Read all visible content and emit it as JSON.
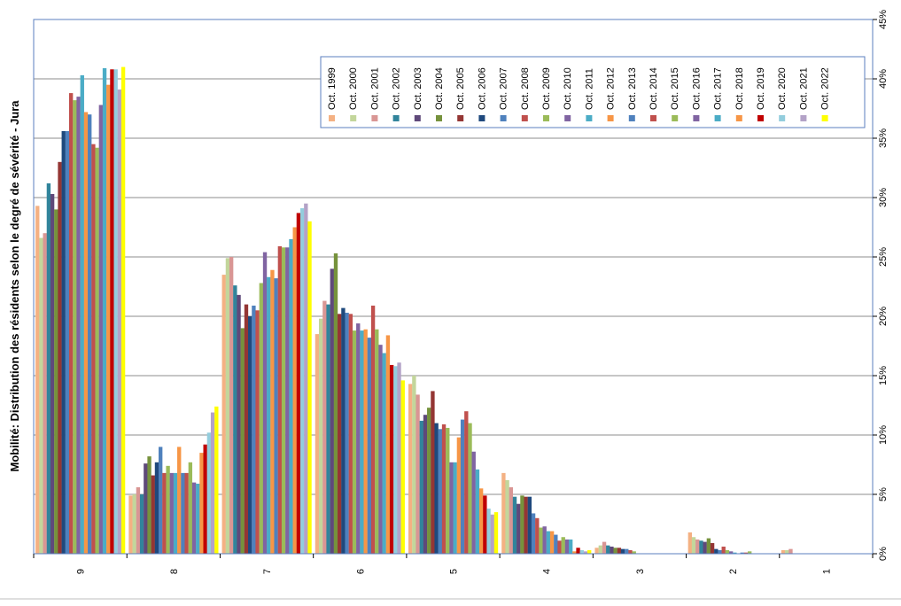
{
  "chart_data": {
    "type": "bar",
    "title": "Mobilité: Distribution des résidents selon le degré de sévérité - Jura",
    "xlabel": "",
    "ylabel": "",
    "ylim": [
      0,
      45
    ],
    "yticks": [
      "0%",
      "5%",
      "10%",
      "15%",
      "20%",
      "25%",
      "30%",
      "35%",
      "40%",
      "45%"
    ],
    "grid": true,
    "legend_position": "top-right",
    "categories": [
      "9",
      "8",
      "7",
      "6",
      "5",
      "4",
      "3",
      "2",
      "1"
    ],
    "series": [
      {
        "name": "Oct. 1999",
        "color": "#f4b183",
        "values": [
          29.3,
          4.9,
          23.5,
          18.5,
          14.3,
          6.8,
          0.5,
          1.8,
          0.3
        ]
      },
      {
        "name": "Oct. 2000",
        "color": "#c3d69b",
        "values": [
          26.6,
          5.0,
          24.9,
          19.8,
          15.0,
          6.2,
          0.7,
          1.4,
          0.3
        ]
      },
      {
        "name": "Oct. 2001",
        "color": "#d99694",
        "values": [
          27.0,
          5.6,
          25.0,
          21.3,
          13.4,
          5.6,
          1.0,
          1.2,
          0.4
        ]
      },
      {
        "name": "Oct. 2002",
        "color": "#31849b",
        "values": [
          31.2,
          5.0,
          22.6,
          21.0,
          11.2,
          4.8,
          0.7,
          1.1,
          0.0
        ]
      },
      {
        "name": "Oct. 2003",
        "color": "#5f497a",
        "values": [
          30.3,
          7.6,
          21.8,
          24.0,
          11.7,
          4.2,
          0.6,
          1.0,
          0.0
        ]
      },
      {
        "name": "Oct. 2004",
        "color": "#76923c",
        "values": [
          29.0,
          8.2,
          19.0,
          25.3,
          12.3,
          4.9,
          0.5,
          1.3,
          0.0
        ]
      },
      {
        "name": "Oct. 2005",
        "color": "#943634",
        "values": [
          33.0,
          6.6,
          21.0,
          20.2,
          13.7,
          4.8,
          0.5,
          0.9,
          0.0
        ]
      },
      {
        "name": "Oct. 2006",
        "color": "#1f497d",
        "values": [
          35.6,
          7.7,
          20.0,
          20.7,
          11.0,
          4.8,
          0.4,
          0.4,
          0.0
        ]
      },
      {
        "name": "Oct. 2007",
        "color": "#4f81bd",
        "values": [
          35.6,
          9.0,
          20.9,
          20.3,
          10.5,
          3.4,
          0.4,
          0.3,
          0.0
        ]
      },
      {
        "name": "Oct. 2008",
        "color": "#c0504d",
        "values": [
          38.8,
          6.8,
          20.5,
          20.2,
          10.9,
          3.0,
          0.3,
          0.6,
          0.0
        ]
      },
      {
        "name": "Oct. 2009",
        "color": "#9bbb59",
        "values": [
          38.2,
          7.4,
          22.8,
          18.8,
          10.6,
          2.2,
          0.2,
          0.3,
          0.0
        ]
      },
      {
        "name": "Oct. 2010",
        "color": "#8064a2",
        "values": [
          38.5,
          6.8,
          25.4,
          19.4,
          7.7,
          2.3,
          0.0,
          0.2,
          0.0
        ]
      },
      {
        "name": "Oct. 2011",
        "color": "#4bacc6",
        "values": [
          40.3,
          6.8,
          23.3,
          18.8,
          7.7,
          1.9,
          0.0,
          0.1,
          0.0
        ]
      },
      {
        "name": "Oct. 2012",
        "color": "#f79646",
        "values": [
          37.2,
          9.0,
          23.9,
          18.9,
          9.8,
          1.9,
          0.0,
          0.0,
          0.0
        ]
      },
      {
        "name": "Oct. 2013",
        "color": "#4f81bd",
        "values": [
          37.0,
          6.8,
          23.2,
          18.2,
          11.3,
          1.6,
          0.0,
          0.1,
          0.0
        ]
      },
      {
        "name": "Oct. 2014",
        "color": "#c0504d",
        "values": [
          34.5,
          6.8,
          25.9,
          20.9,
          12.0,
          1.1,
          0.0,
          0.1,
          0.0
        ]
      },
      {
        "name": "Oct. 2015",
        "color": "#9bbb59",
        "values": [
          34.2,
          7.7,
          25.8,
          18.9,
          11.0,
          1.4,
          0.0,
          0.2,
          0.0
        ]
      },
      {
        "name": "Oct. 2016",
        "color": "#8064a2",
        "values": [
          37.8,
          6.0,
          25.8,
          17.6,
          8.6,
          1.2,
          0.0,
          0.0,
          0.0
        ]
      },
      {
        "name": "Oct. 2017",
        "color": "#4bacc6",
        "values": [
          40.9,
          5.9,
          26.5,
          16.9,
          7.1,
          1.2,
          0.0,
          0.0,
          0.0
        ]
      },
      {
        "name": "Oct. 2018",
        "color": "#f79646",
        "values": [
          39.5,
          8.5,
          27.5,
          18.4,
          5.5,
          0.2,
          0.0,
          0.0,
          0.0
        ]
      },
      {
        "name": "Oct. 2019",
        "color": "#c00000",
        "values": [
          40.8,
          9.2,
          28.7,
          15.9,
          4.9,
          0.5,
          0.0,
          0.0,
          0.0
        ]
      },
      {
        "name": "Oct. 2020",
        "color": "#93cddd",
        "values": [
          40.8,
          10.2,
          29.1,
          15.8,
          3.8,
          0.3,
          0.0,
          0.0,
          0.0
        ]
      },
      {
        "name": "Oct. 2021",
        "color": "#b3a2c7",
        "values": [
          39.1,
          11.9,
          29.5,
          16.1,
          3.3,
          0.2,
          0.0,
          0.0,
          0.0
        ]
      },
      {
        "name": "Oct. 2022",
        "color": "#ffff00",
        "values": [
          41.0,
          12.4,
          28.0,
          14.6,
          3.5,
          0.3,
          0.0,
          0.0,
          0.0
        ]
      }
    ]
  }
}
